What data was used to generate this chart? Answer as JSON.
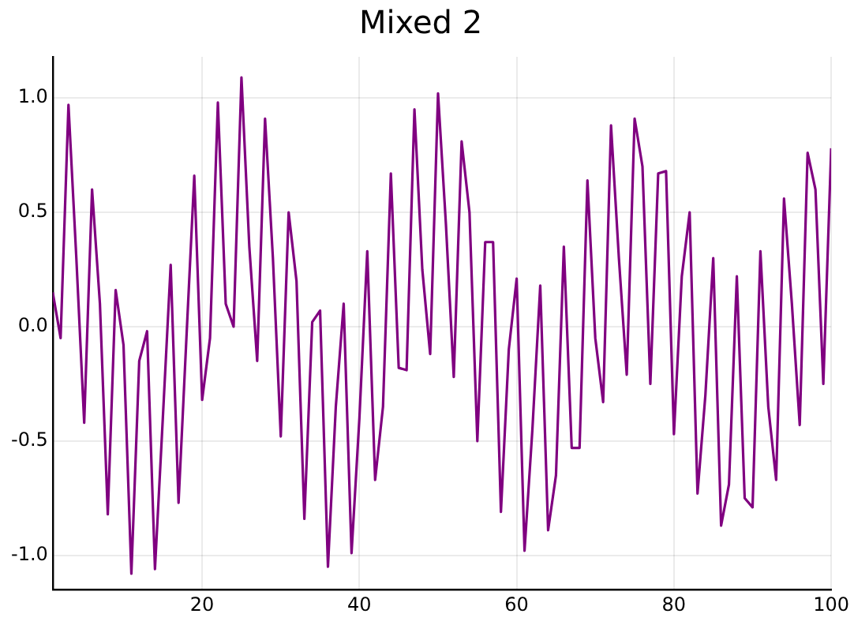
{
  "chart_data": {
    "type": "line",
    "title": "Mixed 2",
    "x": [
      1,
      2,
      3,
      4,
      5,
      6,
      7,
      8,
      9,
      10,
      11,
      12,
      13,
      14,
      15,
      16,
      17,
      18,
      19,
      20,
      21,
      22,
      23,
      24,
      25,
      26,
      27,
      28,
      29,
      30,
      31,
      32,
      33,
      34,
      35,
      36,
      37,
      38,
      39,
      40,
      41,
      42,
      43,
      44,
      45,
      46,
      47,
      48,
      49,
      50,
      51,
      52,
      53,
      54,
      55,
      56,
      57,
      58,
      59,
      60,
      61,
      62,
      63,
      64,
      65,
      66,
      67,
      68,
      69,
      70,
      71,
      72,
      73,
      74,
      75,
      76,
      77,
      78,
      79,
      80,
      81,
      82,
      83,
      84,
      85,
      86,
      87,
      88,
      89,
      90,
      91,
      92,
      93,
      94,
      95,
      96,
      97,
      98,
      99,
      100
    ],
    "series": [
      {
        "color": "#800080",
        "values": [
          0.15,
          -0.05,
          0.97,
          0.3,
          -0.42,
          0.6,
          0.1,
          -0.82,
          0.16,
          -0.08,
          -1.08,
          -0.15,
          -0.02,
          -1.06,
          -0.4,
          0.27,
          -0.77,
          -0.05,
          0.66,
          -0.32,
          -0.05,
          0.98,
          0.1,
          0.0,
          1.09,
          0.35,
          -0.15,
          0.91,
          0.3,
          -0.48,
          0.5,
          0.2,
          -0.84,
          0.02,
          0.07,
          -1.05,
          -0.35,
          0.1,
          -0.99,
          -0.4,
          0.33,
          -0.67,
          -0.35,
          0.67,
          -0.18,
          -0.19,
          0.95,
          0.25,
          -0.12,
          1.02,
          0.45,
          -0.22,
          0.81,
          0.5,
          -0.5,
          0.37,
          0.37,
          -0.81,
          -0.1,
          0.21,
          -0.98,
          -0.45,
          0.18,
          -0.89,
          -0.65,
          0.35,
          -0.53,
          -0.53,
          0.64,
          -0.05,
          -0.33,
          0.88,
          0.3,
          -0.21,
          0.91,
          0.7,
          -0.25,
          0.67,
          0.68,
          -0.47,
          0.22,
          0.5,
          -0.73,
          -0.3,
          0.3,
          -0.87,
          -0.69,
          0.22,
          -0.75,
          -0.79,
          0.33,
          -0.35,
          -0.67,
          0.56,
          0.1,
          -0.43,
          0.76,
          0.6,
          -0.25,
          0.78
        ]
      }
    ],
    "xlim": [
      1,
      100
    ],
    "xticks": [
      20,
      40,
      60,
      80,
      100
    ],
    "ylim": [
      -1.15,
      1.18
    ],
    "yticks": [
      {
        "value": -1,
        "label": "-1.0"
      },
      {
        "value": -0.5,
        "label": "-0.5"
      },
      {
        "value": 0,
        "label": "0.0"
      },
      {
        "value": 0.5,
        "label": "0.5"
      },
      {
        "value": 1,
        "label": "1.0"
      }
    ],
    "grid": true,
    "legend": false,
    "marker": "none",
    "line_style": "solid"
  }
}
